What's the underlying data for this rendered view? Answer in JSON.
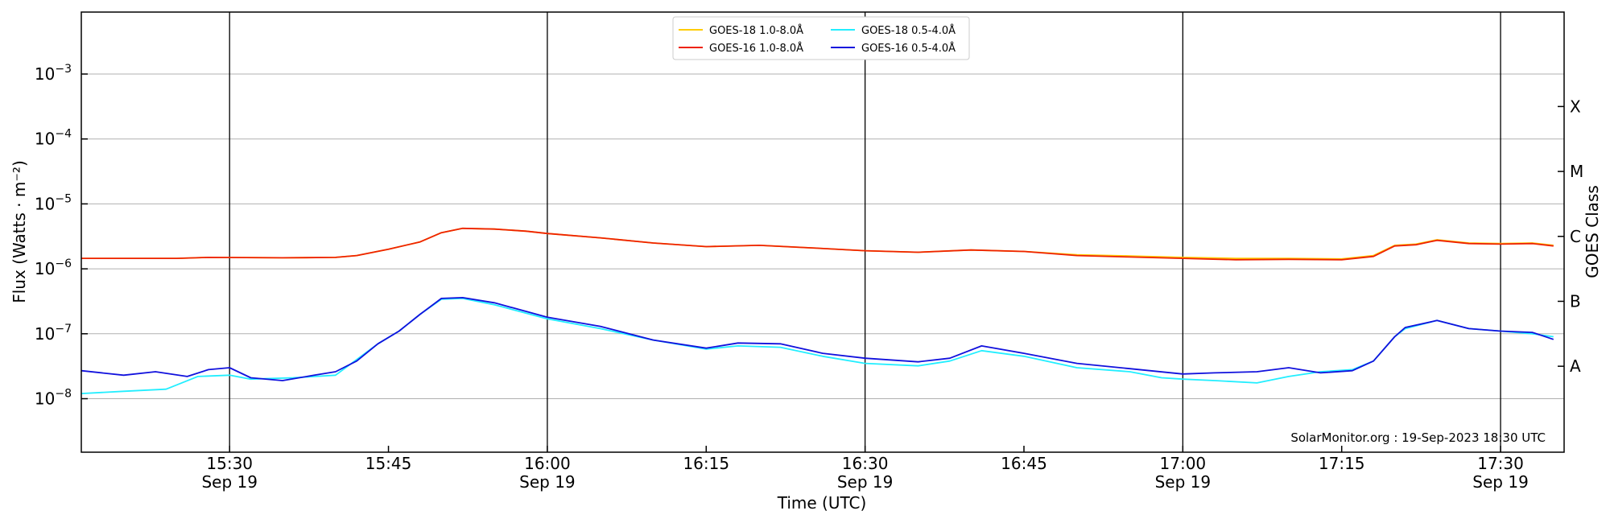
{
  "chart_data": {
    "type": "line",
    "ylabel": "Flux (Watts · m⁻²)",
    "y2label": "GOES Class",
    "xlabel": "Time (UTC)",
    "yscale": "log",
    "ylim": [
      1.5e-09,
      0.009
    ],
    "xlim": [
      "15:16",
      "17:36"
    ],
    "x_ticks": [
      {
        "time": "15:30",
        "label": "15:30",
        "date": "Sep 19",
        "major": true
      },
      {
        "time": "15:45",
        "label": "15:45",
        "date": "",
        "major": false
      },
      {
        "time": "16:00",
        "label": "16:00",
        "date": "Sep 19",
        "major": true
      },
      {
        "time": "16:15",
        "label": "16:15",
        "date": "",
        "major": false
      },
      {
        "time": "16:30",
        "label": "16:30",
        "date": "Sep 19",
        "major": true
      },
      {
        "time": "16:45",
        "label": "16:45",
        "date": "",
        "major": false
      },
      {
        "time": "17:00",
        "label": "17:00",
        "date": "Sep 19",
        "major": true
      },
      {
        "time": "17:15",
        "label": "17:15",
        "date": "",
        "major": false
      },
      {
        "time": "17:30",
        "label": "17:30",
        "date": "Sep 19",
        "major": true
      }
    ],
    "y_ticks": [
      {
        "value": 1e-08,
        "base": "10",
        "exp": "−8"
      },
      {
        "value": 1e-07,
        "base": "10",
        "exp": "−7"
      },
      {
        "value": 1e-06,
        "base": "10",
        "exp": "−6"
      },
      {
        "value": 1e-05,
        "base": "10",
        "exp": "−5"
      },
      {
        "value": 0.0001,
        "base": "10",
        "exp": "−4"
      },
      {
        "value": 0.001,
        "base": "10",
        "exp": "−3"
      }
    ],
    "goes_classes": [
      {
        "label": "A",
        "value": 3.16e-08
      },
      {
        "label": "B",
        "value": 3.16e-07
      },
      {
        "label": "C",
        "value": 3.16e-06
      },
      {
        "label": "M",
        "value": 3.16e-05
      },
      {
        "label": "X",
        "value": 0.000316
      }
    ],
    "grid": true,
    "legend_position": "top-center",
    "annotation": "SolarMonitor.org : 19-Sep-2023 18:30 UTC",
    "series": [
      {
        "name": "GOES-18 1.0-8.0Å",
        "color": "#ffcc00",
        "points": [
          [
            "15:16",
            1.45e-06
          ],
          [
            "15:25",
            1.45e-06
          ],
          [
            "15:28",
            1.5e-06
          ],
          [
            "15:35",
            1.48e-06
          ],
          [
            "15:40",
            1.5e-06
          ],
          [
            "15:42",
            1.6e-06
          ],
          [
            "15:45",
            2e-06
          ],
          [
            "15:48",
            2.6e-06
          ],
          [
            "15:50",
            3.6e-06
          ],
          [
            "15:52",
            4.2e-06
          ],
          [
            "15:55",
            4.1e-06
          ],
          [
            "15:58",
            3.8e-06
          ],
          [
            "16:00",
            3.5e-06
          ],
          [
            "16:05",
            3e-06
          ],
          [
            "16:10",
            2.5e-06
          ],
          [
            "16:15",
            2.2e-06
          ],
          [
            "16:20",
            2.3e-06
          ],
          [
            "16:25",
            2.1e-06
          ],
          [
            "16:30",
            1.9e-06
          ],
          [
            "16:35",
            1.8e-06
          ],
          [
            "16:40",
            1.95e-06
          ],
          [
            "16:45",
            1.85e-06
          ],
          [
            "16:50",
            1.65e-06
          ],
          [
            "16:55",
            1.58e-06
          ],
          [
            "17:00",
            1.5e-06
          ],
          [
            "17:05",
            1.45e-06
          ],
          [
            "17:10",
            1.45e-06
          ],
          [
            "17:15",
            1.42e-06
          ],
          [
            "17:18",
            1.6e-06
          ],
          [
            "17:20",
            2.3e-06
          ],
          [
            "17:22",
            2.4e-06
          ],
          [
            "17:24",
            2.8e-06
          ],
          [
            "17:27",
            2.5e-06
          ],
          [
            "17:30",
            2.45e-06
          ],
          [
            "17:33",
            2.5e-06
          ],
          [
            "17:35",
            2.3e-06
          ]
        ]
      },
      {
        "name": "GOES-16 1.0-8.0Å",
        "color": "#ee2200",
        "points": [
          [
            "15:16",
            1.45e-06
          ],
          [
            "15:25",
            1.45e-06
          ],
          [
            "15:28",
            1.5e-06
          ],
          [
            "15:35",
            1.48e-06
          ],
          [
            "15:40",
            1.5e-06
          ],
          [
            "15:42",
            1.6e-06
          ],
          [
            "15:45",
            2e-06
          ],
          [
            "15:48",
            2.6e-06
          ],
          [
            "15:50",
            3.6e-06
          ],
          [
            "15:52",
            4.2e-06
          ],
          [
            "15:55",
            4.1e-06
          ],
          [
            "15:58",
            3.8e-06
          ],
          [
            "16:00",
            3.5e-06
          ],
          [
            "16:05",
            3e-06
          ],
          [
            "16:10",
            2.5e-06
          ],
          [
            "16:15",
            2.2e-06
          ],
          [
            "16:20",
            2.3e-06
          ],
          [
            "16:25",
            2.1e-06
          ],
          [
            "16:30",
            1.9e-06
          ],
          [
            "16:35",
            1.8e-06
          ],
          [
            "16:40",
            1.95e-06
          ],
          [
            "16:45",
            1.85e-06
          ],
          [
            "16:50",
            1.6e-06
          ],
          [
            "16:55",
            1.52e-06
          ],
          [
            "17:00",
            1.45e-06
          ],
          [
            "17:05",
            1.38e-06
          ],
          [
            "17:10",
            1.4e-06
          ],
          [
            "17:15",
            1.38e-06
          ],
          [
            "17:18",
            1.55e-06
          ],
          [
            "17:20",
            2.25e-06
          ],
          [
            "17:22",
            2.35e-06
          ],
          [
            "17:24",
            2.75e-06
          ],
          [
            "17:27",
            2.45e-06
          ],
          [
            "17:30",
            2.4e-06
          ],
          [
            "17:33",
            2.45e-06
          ],
          [
            "17:35",
            2.25e-06
          ]
        ]
      },
      {
        "name": "GOES-18 0.5-4.0Å",
        "color": "#22eeff",
        "points": [
          [
            "15:16",
            1.2e-08
          ],
          [
            "15:20",
            1.3e-08
          ],
          [
            "15:24",
            1.4e-08
          ],
          [
            "15:27",
            2.2e-08
          ],
          [
            "15:30",
            2.3e-08
          ],
          [
            "15:32",
            2e-08
          ],
          [
            "15:36",
            2.1e-08
          ],
          [
            "15:40",
            2.3e-08
          ],
          [
            "15:42",
            4e-08
          ],
          [
            "15:44",
            7e-08
          ],
          [
            "15:46",
            1.1e-07
          ],
          [
            "15:48",
            2e-07
          ],
          [
            "15:50",
            3.4e-07
          ],
          [
            "15:52",
            3.5e-07
          ],
          [
            "15:55",
            2.8e-07
          ],
          [
            "16:00",
            1.7e-07
          ],
          [
            "16:05",
            1.2e-07
          ],
          [
            "16:10",
            8e-08
          ],
          [
            "16:15",
            5.8e-08
          ],
          [
            "16:18",
            6.5e-08
          ],
          [
            "16:22",
            6.2e-08
          ],
          [
            "16:26",
            4.5e-08
          ],
          [
            "16:30",
            3.5e-08
          ],
          [
            "16:35",
            3.2e-08
          ],
          [
            "16:38",
            3.8e-08
          ],
          [
            "16:41",
            5.5e-08
          ],
          [
            "16:45",
            4.5e-08
          ],
          [
            "16:50",
            3e-08
          ],
          [
            "16:55",
            2.6e-08
          ],
          [
            "16:58",
            2.1e-08
          ],
          [
            "17:00",
            2e-08
          ],
          [
            "17:03",
            1.9e-08
          ],
          [
            "17:07",
            1.75e-08
          ],
          [
            "17:10",
            2.2e-08
          ],
          [
            "17:13",
            2.6e-08
          ],
          [
            "17:16",
            2.8e-08
          ],
          [
            "17:18",
            3.8e-08
          ],
          [
            "17:20",
            9e-08
          ],
          [
            "17:21",
            1.2e-07
          ],
          [
            "17:24",
            1.6e-07
          ],
          [
            "17:27",
            1.2e-07
          ],
          [
            "17:30",
            1.1e-07
          ],
          [
            "17:33",
            1e-07
          ],
          [
            "17:35",
            9e-08
          ]
        ]
      },
      {
        "name": "GOES-16 0.5-4.0Å",
        "color": "#1111dd",
        "points": [
          [
            "15:16",
            2.7e-08
          ],
          [
            "15:20",
            2.3e-08
          ],
          [
            "15:23",
            2.6e-08
          ],
          [
            "15:26",
            2.2e-08
          ],
          [
            "15:28",
            2.8e-08
          ],
          [
            "15:30",
            3e-08
          ],
          [
            "15:32",
            2.1e-08
          ],
          [
            "15:35",
            1.9e-08
          ],
          [
            "15:38",
            2.3e-08
          ],
          [
            "15:40",
            2.6e-08
          ],
          [
            "15:42",
            3.8e-08
          ],
          [
            "15:44",
            7e-08
          ],
          [
            "15:46",
            1.1e-07
          ],
          [
            "15:48",
            2e-07
          ],
          [
            "15:50",
            3.5e-07
          ],
          [
            "15:52",
            3.6e-07
          ],
          [
            "15:55",
            3e-07
          ],
          [
            "16:00",
            1.8e-07
          ],
          [
            "16:05",
            1.3e-07
          ],
          [
            "16:10",
            8e-08
          ],
          [
            "16:15",
            6e-08
          ],
          [
            "16:18",
            7.2e-08
          ],
          [
            "16:22",
            7e-08
          ],
          [
            "16:26",
            5e-08
          ],
          [
            "16:30",
            4.2e-08
          ],
          [
            "16:35",
            3.7e-08
          ],
          [
            "16:38",
            4.2e-08
          ],
          [
            "16:41",
            6.5e-08
          ],
          [
            "16:45",
            5e-08
          ],
          [
            "16:50",
            3.5e-08
          ],
          [
            "16:55",
            2.9e-08
          ],
          [
            "17:00",
            2.4e-08
          ],
          [
            "17:03",
            2.5e-08
          ],
          [
            "17:07",
            2.6e-08
          ],
          [
            "17:10",
            3e-08
          ],
          [
            "17:13",
            2.5e-08
          ],
          [
            "17:16",
            2.7e-08
          ],
          [
            "17:18",
            3.8e-08
          ],
          [
            "17:20",
            9e-08
          ],
          [
            "17:21",
            1.25e-07
          ],
          [
            "17:24",
            1.6e-07
          ],
          [
            "17:27",
            1.2e-07
          ],
          [
            "17:30",
            1.1e-07
          ],
          [
            "17:33",
            1.05e-07
          ],
          [
            "17:35",
            8.2e-08
          ]
        ]
      }
    ]
  }
}
